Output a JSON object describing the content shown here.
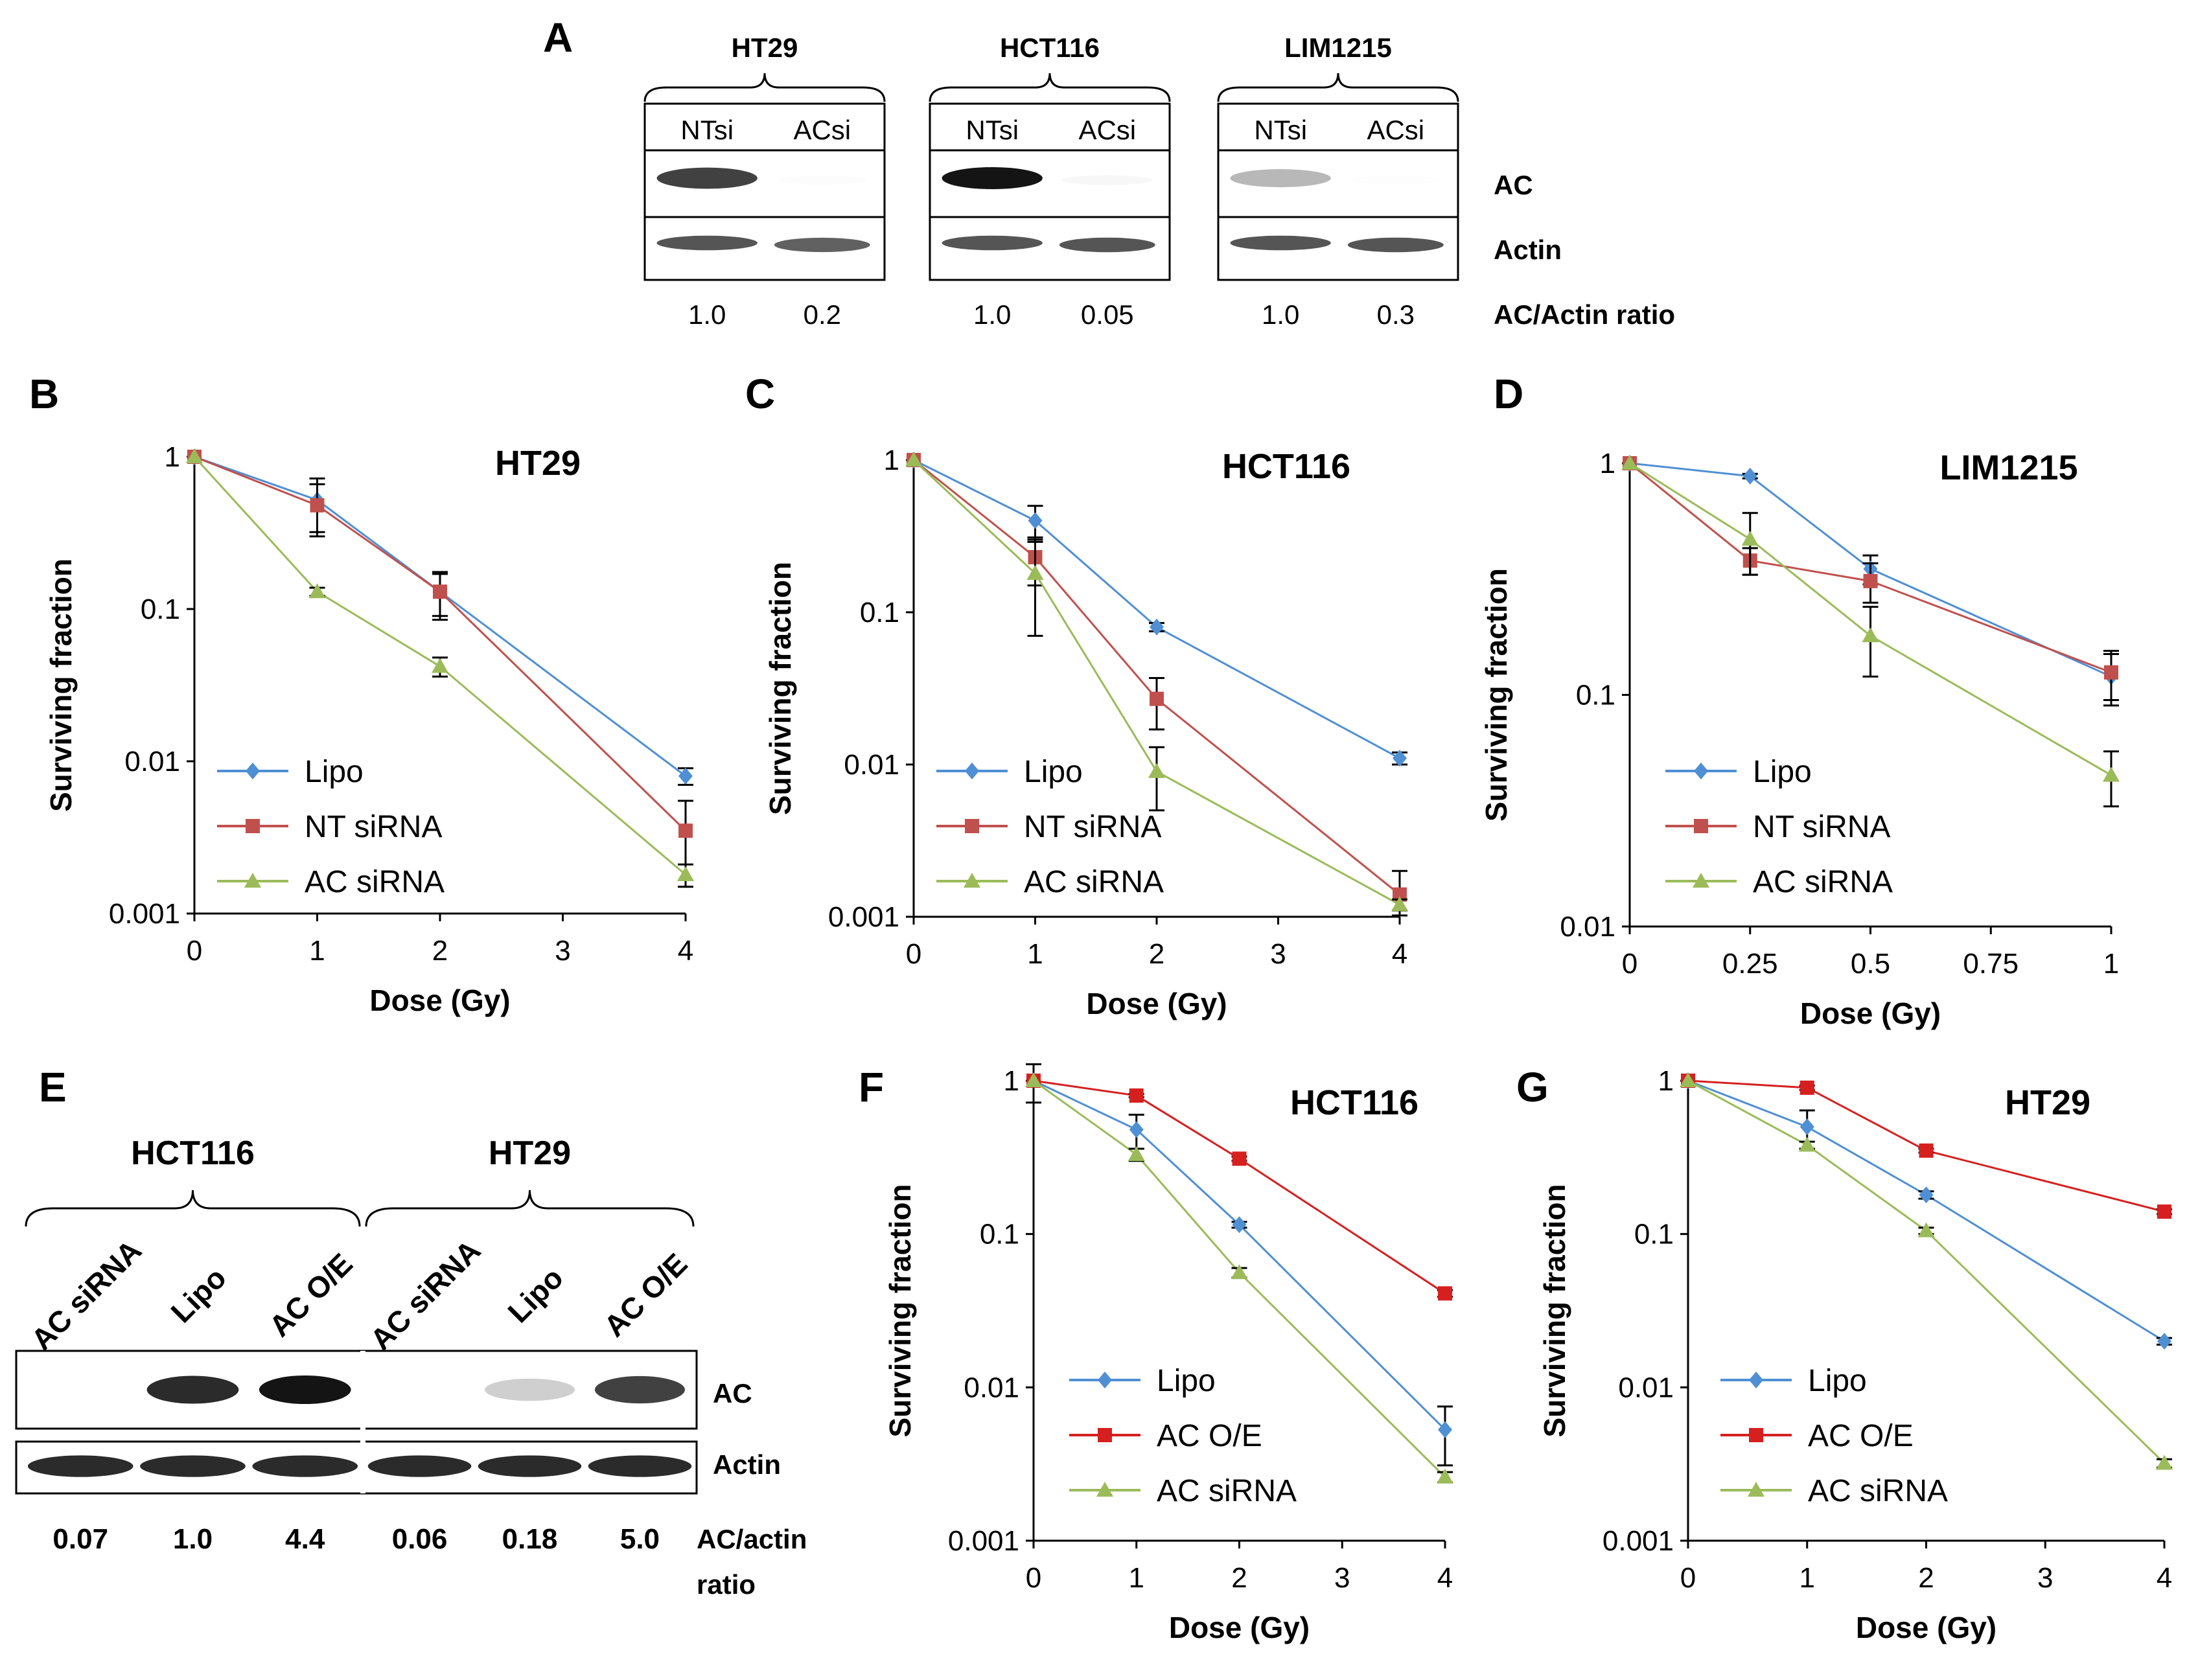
{
  "colors": {
    "lipo": "#4f8fd4",
    "nt": "#c0504d",
    "ac": "#9bbb59",
    "oe": "#d62020"
  },
  "panelA": {
    "label": "A",
    "groups": [
      {
        "cell": "HT29",
        "lanes": [
          "NTsi",
          "ACsi"
        ],
        "ratios": [
          "1.0",
          "0.2"
        ]
      },
      {
        "cell": "HCT116",
        "lanes": [
          "NTsi",
          "ACsi"
        ],
        "ratios": [
          "1.0",
          "0.05"
        ]
      },
      {
        "cell": "LIM1215",
        "lanes": [
          "NTsi",
          "ACsi"
        ],
        "ratios": [
          "1.0",
          "0.3"
        ]
      }
    ],
    "row_labels": [
      "AC",
      "Actin"
    ],
    "ratio_label": "AC/Actin ratio",
    "band_intensity": [
      [
        0.9,
        0.12
      ],
      [
        0.85,
        0.82
      ],
      [
        1.0,
        0.18
      ],
      [
        0.85,
        0.85
      ],
      [
        0.55,
        0.1
      ],
      [
        0.85,
        0.85
      ]
    ]
  },
  "panelE": {
    "label": "E",
    "groups": [
      {
        "cell": "HCT116",
        "lanes": [
          "AC siRNA",
          "Lipo",
          "AC O/E"
        ],
        "ratios": [
          "0.07",
          "1.0",
          "4.4"
        ]
      },
      {
        "cell": "HT29",
        "lanes": [
          "AC siRNA",
          "Lipo",
          "AC O/E"
        ],
        "ratios": [
          "0.06",
          "0.18",
          "5.0"
        ]
      }
    ],
    "row_labels": [
      "AC",
      "Actin"
    ],
    "ratio_label_1": "AC/actin",
    "ratio_label_2": "ratio",
    "band_intensity": [
      [
        0.04,
        0.95,
        1.0,
        0.03,
        0.45,
        0.9
      ],
      [
        0.95,
        0.95,
        0.95,
        0.95,
        0.95,
        0.95
      ]
    ]
  },
  "chart_data": [
    {
      "panel": "B",
      "type": "line",
      "title": "HT29",
      "xlabel": "Dose (Gy)",
      "ylabel": "Surviving fraction",
      "yscale": "log",
      "ylim": [
        0.001,
        1
      ],
      "xlim": [
        0,
        4
      ],
      "yticks": [
        "1",
        "0.1",
        "0.01",
        "0.001"
      ],
      "xticks": [
        "0",
        "1",
        "2",
        "3",
        "4"
      ],
      "series": [
        {
          "name": "Lipo",
          "color": "lipo",
          "marker": "diamond",
          "x": [
            0,
            1,
            2,
            4
          ],
          "y": [
            1,
            0.52,
            0.13,
            0.008
          ],
          "err": [
            0,
            0.2,
            0.04,
            0.001
          ]
        },
        {
          "name": "NT siRNA",
          "color": "nt",
          "marker": "square",
          "x": [
            0,
            1,
            2,
            4
          ],
          "y": [
            1,
            0.48,
            0.13,
            0.0035
          ],
          "err": [
            0,
            0.18,
            0.045,
            0.002
          ]
        },
        {
          "name": "AC siRNA",
          "color": "ac",
          "marker": "triangle",
          "x": [
            0,
            1,
            2,
            4
          ],
          "y": [
            1,
            0.13,
            0.042,
            0.0018
          ],
          "err": [
            0,
            0.008,
            0.006,
            0.0003
          ]
        }
      ]
    },
    {
      "panel": "C",
      "type": "line",
      "title": "HCT116",
      "xlabel": "Dose (Gy)",
      "ylabel": "Surviving fraction",
      "yscale": "log",
      "ylim": [
        0.001,
        1
      ],
      "xlim": [
        0,
        4
      ],
      "yticks": [
        "1",
        "0.1",
        "0.01",
        "0.001"
      ],
      "xticks": [
        "0",
        "1",
        "2",
        "3",
        "4"
      ],
      "series": [
        {
          "name": "Lipo",
          "color": "lipo",
          "marker": "diamond",
          "x": [
            0,
            1,
            2,
            4
          ],
          "y": [
            1,
            0.4,
            0.08,
            0.011
          ],
          "err": [
            0,
            0.1,
            0.005,
            0.001
          ]
        },
        {
          "name": "NT siRNA",
          "color": "nt",
          "marker": "square",
          "x": [
            0,
            1,
            2,
            4
          ],
          "y": [
            1,
            0.23,
            0.027,
            0.0014
          ],
          "err": [
            0,
            0.08,
            0.01,
            0.0006
          ]
        },
        {
          "name": "AC siRNA",
          "color": "ac",
          "marker": "triangle",
          "x": [
            0,
            1,
            2,
            4
          ],
          "y": [
            1,
            0.18,
            0.009,
            0.0012
          ],
          "err": [
            0,
            0.11,
            0.004,
            0.0001
          ]
        }
      ]
    },
    {
      "panel": "D",
      "type": "line",
      "title": "LIM1215",
      "xlabel": "Dose (Gy)",
      "ylabel": "Surviving fraction",
      "yscale": "log",
      "ylim": [
        0.01,
        1
      ],
      "xlim": [
        0,
        1
      ],
      "yticks": [
        "1",
        "0.1",
        "0.01"
      ],
      "xticks": [
        "0",
        "0.25",
        "0.5",
        "0.75",
        "1"
      ],
      "series": [
        {
          "name": "Lipo",
          "color": "lipo",
          "marker": "diamond",
          "x": [
            0,
            0.25,
            0.5,
            1
          ],
          "y": [
            1,
            0.88,
            0.35,
            0.12
          ],
          "err": [
            0,
            0.02,
            0.05,
            0.03
          ]
        },
        {
          "name": "NT siRNA",
          "color": "nt",
          "marker": "square",
          "x": [
            0,
            0.25,
            0.5,
            1
          ],
          "y": [
            1,
            0.38,
            0.31,
            0.125
          ],
          "err": [
            0,
            0.05,
            0.06,
            0.03
          ]
        },
        {
          "name": "AC siRNA",
          "color": "ac",
          "marker": "triangle",
          "x": [
            0,
            0.25,
            0.5,
            1
          ],
          "y": [
            1,
            0.47,
            0.18,
            0.045
          ],
          "err": [
            0,
            0.14,
            0.06,
            0.012
          ]
        }
      ]
    },
    {
      "panel": "F",
      "type": "line",
      "title": "HCT116",
      "xlabel": "Dose (Gy)",
      "ylabel": "Surviving fraction",
      "yscale": "log",
      "ylim": [
        0.001,
        1
      ],
      "xlim": [
        0,
        4
      ],
      "yticks": [
        "1",
        "0.1",
        "0.01",
        "0.001"
      ],
      "xticks": [
        "0",
        "1",
        "2",
        "3",
        "4"
      ],
      "series": [
        {
          "name": "Lipo",
          "color": "lipo",
          "marker": "diamond",
          "x": [
            0,
            1,
            2,
            4
          ],
          "y": [
            1,
            0.48,
            0.115,
            0.0053
          ],
          "err": [
            0,
            0.12,
            0.005,
            0.0022
          ]
        },
        {
          "name": "AC O/E",
          "color": "oe",
          "marker": "square",
          "x": [
            0,
            1,
            2,
            4
          ],
          "y": [
            1,
            0.8,
            0.31,
            0.041
          ],
          "err": [
            0.28,
            0.02,
            0.01,
            0.002
          ]
        },
        {
          "name": "AC siRNA",
          "color": "ac",
          "marker": "triangle",
          "x": [
            0,
            1,
            2,
            4
          ],
          "y": [
            1,
            0.33,
            0.056,
            0.0026
          ],
          "err": [
            0,
            0.03,
            0.004,
            0.0002
          ]
        }
      ]
    },
    {
      "panel": "G",
      "type": "line",
      "title": "HT29",
      "xlabel": "Dose (Gy)",
      "ylabel": "Surviving fraction",
      "yscale": "log",
      "ylim": [
        0.001,
        1
      ],
      "xlim": [
        0,
        4
      ],
      "yticks": [
        "1",
        "0.1",
        "0.01",
        "0.001"
      ],
      "xticks": [
        "0",
        "1",
        "2",
        "3",
        "4"
      ],
      "series": [
        {
          "name": "Lipo",
          "color": "lipo",
          "marker": "diamond",
          "x": [
            0,
            1,
            2,
            4
          ],
          "y": [
            1,
            0.5,
            0.18,
            0.02
          ],
          "err": [
            0,
            0.14,
            0.01,
            0.001
          ]
        },
        {
          "name": "AC O/E",
          "color": "oe",
          "marker": "square",
          "x": [
            0,
            1,
            2,
            4
          ],
          "y": [
            1,
            0.9,
            0.35,
            0.14
          ],
          "err": [
            0,
            0.03,
            0.01,
            0.005
          ]
        },
        {
          "name": "AC siRNA",
          "color": "ac",
          "marker": "triangle",
          "x": [
            0,
            1,
            2,
            4
          ],
          "y": [
            1,
            0.38,
            0.105,
            0.0032
          ],
          "err": [
            0,
            0.02,
            0.005,
            0.0002
          ]
        }
      ]
    }
  ]
}
